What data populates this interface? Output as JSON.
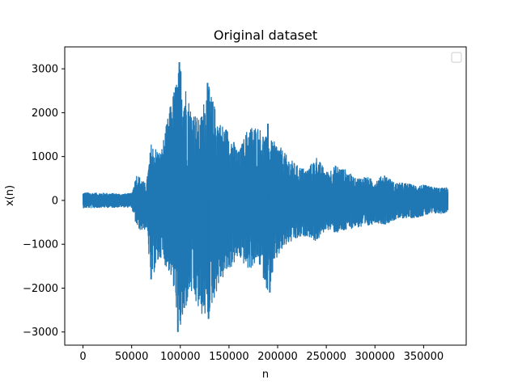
{
  "chart_data": {
    "type": "line",
    "title": "Original dataset",
    "xlabel": "n",
    "ylabel": "x(n)",
    "xlim": [
      -18750,
      393750
    ],
    "ylim": [
      -3300,
      3500
    ],
    "x_ticks": [
      0,
      50000,
      100000,
      150000,
      200000,
      250000,
      300000,
      350000
    ],
    "x_tick_labels": [
      "0",
      "50000",
      "100000",
      "150000",
      "200000",
      "250000",
      "300000",
      "350000"
    ],
    "y_ticks": [
      -3000,
      -2000,
      -1000,
      0,
      1000,
      2000,
      3000
    ],
    "y_tick_labels": [
      "−3000",
      "−2000",
      "−1000",
      "0",
      "1000",
      "2000",
      "3000"
    ],
    "grid": false,
    "legend": {
      "placement": "top-right",
      "entries": []
    },
    "series": [
      {
        "color": "#1f77b4",
        "x_range": [
          0,
          375000
        ],
        "envelope": {
          "x": [
            0,
            10000,
            20000,
            30000,
            40000,
            50000,
            55000,
            60000,
            65000,
            70000,
            80000,
            90000,
            100000,
            110000,
            120000,
            128000,
            140000,
            150000,
            160000,
            170000,
            180000,
            190000,
            200000,
            210000,
            220000,
            230000,
            240000,
            250000,
            260000,
            270000,
            280000,
            290000,
            300000,
            310000,
            320000,
            330000,
            340000,
            350000,
            360000,
            370000,
            375000
          ],
          "upper": [
            180,
            170,
            170,
            160,
            150,
            160,
            600,
            500,
            350,
            1300,
            1100,
            2200,
            3150,
            2200,
            1800,
            2700,
            1800,
            1600,
            1100,
            1700,
            1700,
            1400,
            1300,
            1000,
            800,
            700,
            1000,
            650,
            800,
            700,
            500,
            550,
            450,
            600,
            400,
            400,
            350,
            350,
            300,
            280,
            300
          ],
          "lower": [
            -170,
            -170,
            -160,
            -160,
            -150,
            -160,
            -600,
            -700,
            -650,
            -1800,
            -1300,
            -1700,
            -3000,
            -2100,
            -2600,
            -2700,
            -1900,
            -1600,
            -1300,
            -1600,
            -1400,
            -2100,
            -1300,
            -1000,
            -900,
            -800,
            -950,
            -650,
            -750,
            -700,
            -600,
            -650,
            -500,
            -550,
            -450,
            -400,
            -400,
            -350,
            -300,
            -300,
            -250
          ]
        },
        "peaks": [
          {
            "x": 99000,
            "y": 3150
          },
          {
            "x": 97500,
            "y": -3000
          },
          {
            "x": 128000,
            "y": 2680
          },
          {
            "x": 129000,
            "y": -2700
          },
          {
            "x": 95000,
            "y": 2300
          },
          {
            "x": 104000,
            "y": -2450
          },
          {
            "x": 192000,
            "y": -2100
          },
          {
            "x": 190000,
            "y": 1750
          },
          {
            "x": 70000,
            "y": -1800
          }
        ]
      }
    ]
  }
}
